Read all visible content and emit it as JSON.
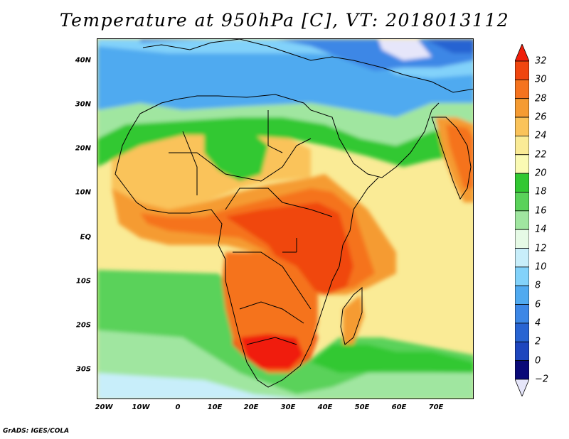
{
  "title": "Temperature at 950hPa [C], VT: 2018013112",
  "credit": "GrADS: IGES/COLA",
  "map": {
    "lat_labels": [
      "40N",
      "30N",
      "20N",
      "10N",
      "EQ",
      "10S",
      "20S",
      "30S"
    ],
    "lon_labels": [
      "20W",
      "10W",
      "0",
      "10E",
      "20E",
      "30E",
      "40E",
      "50E",
      "60E",
      "70E"
    ],
    "lat_range": [
      -37,
      45
    ],
    "lon_range": [
      -22,
      80
    ]
  },
  "colorbar": {
    "ticks": [
      "32",
      "30",
      "28",
      "26",
      "24",
      "22",
      "20",
      "18",
      "16",
      "14",
      "12",
      "10",
      "8",
      "6",
      "4",
      "2",
      "0",
      "−2"
    ],
    "colors": [
      "#f01e0a",
      "#f0460f",
      "#f5731e",
      "#f59b32",
      "#fac35a",
      "#faeb96",
      "#fafab4",
      "#32c832",
      "#5ad25a",
      "#a0e6a0",
      "#e6fae6",
      "#c8eefa",
      "#82d2fa",
      "#50aaf0",
      "#3c87e6",
      "#2864d2",
      "#1e46be",
      "#0a0a78",
      "#e6e6fa"
    ]
  }
}
